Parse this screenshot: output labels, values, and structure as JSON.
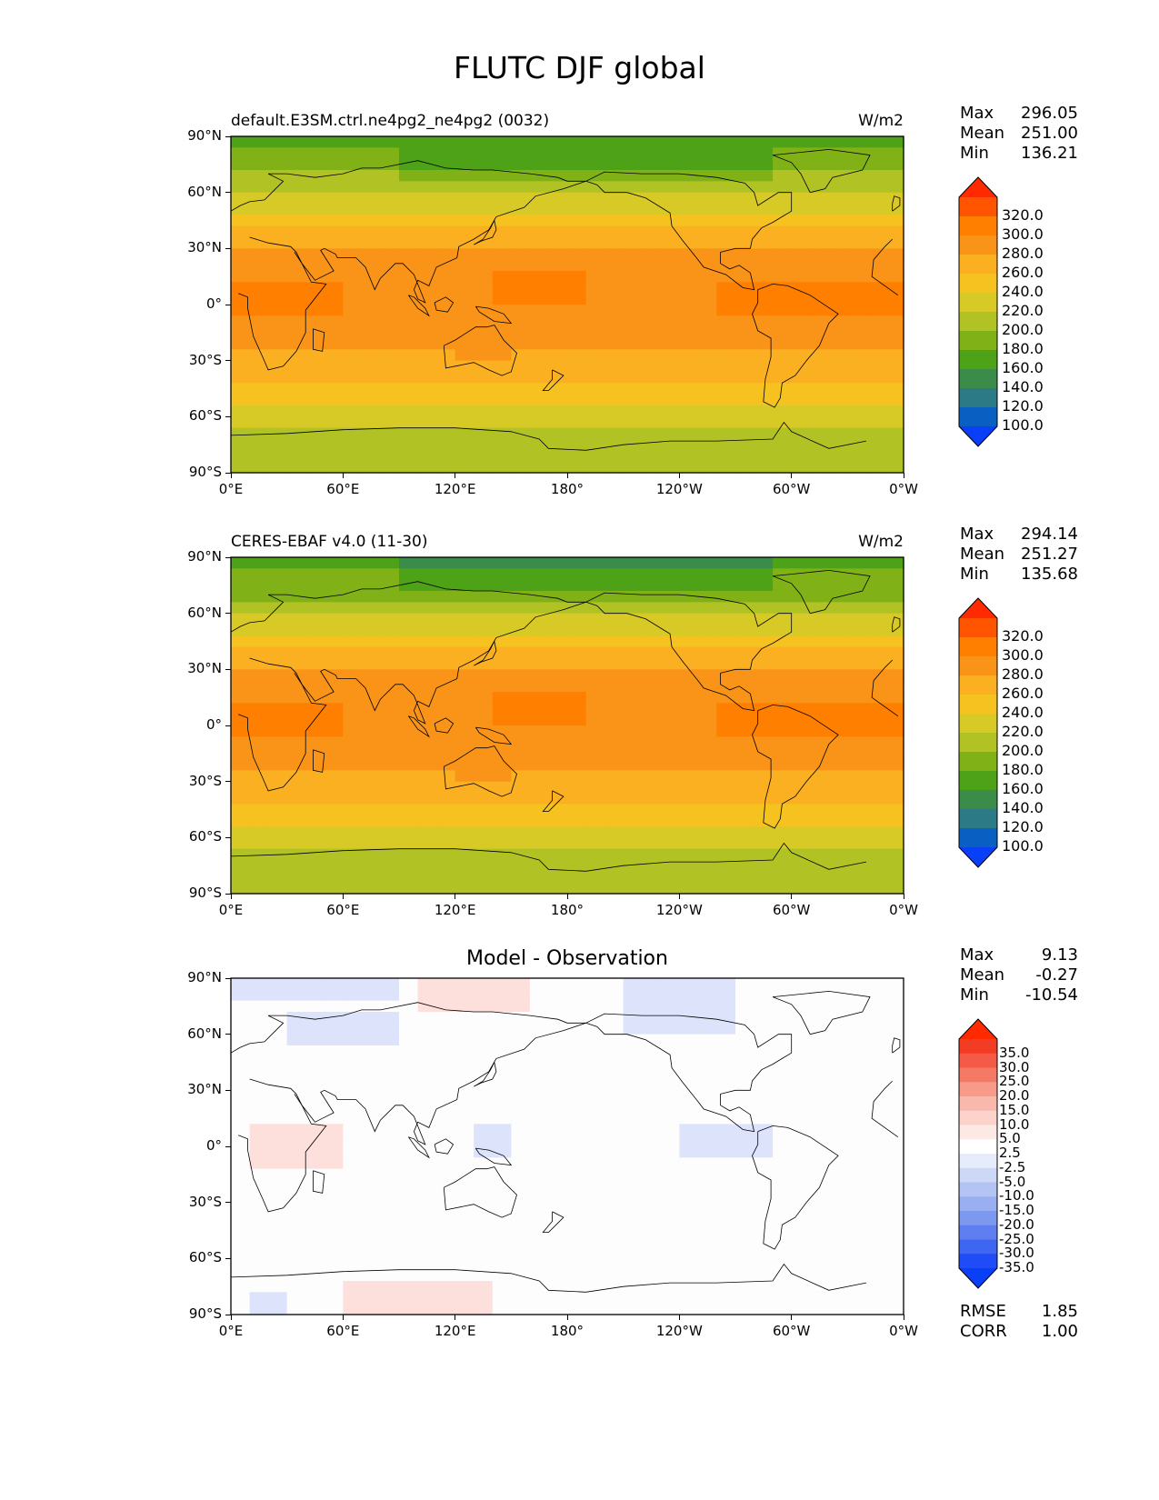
{
  "title": "FLUTC DJF global",
  "lon_ticks": [
    "0°E",
    "60°E",
    "120°E",
    "180°",
    "120°W",
    "60°W",
    "0°W"
  ],
  "lat_ticks": [
    "90°N",
    "60°N",
    "30°N",
    "0°",
    "30°S",
    "60°S",
    "90°S"
  ],
  "panels": [
    {
      "label_left": "default.E3SM.ctrl.ne4pg2_ne4pg2 (0032)",
      "units": "W/m2",
      "center_title": "",
      "stats": [
        {
          "key": "Max",
          "value": "296.05"
        },
        {
          "key": "Mean",
          "value": "251.00"
        },
        {
          "key": "Min",
          "value": "136.21"
        }
      ],
      "colorbar": {
        "labels": [
          "320.0",
          "300.0",
          "280.0",
          "260.0",
          "240.0",
          "220.0",
          "200.0",
          "180.0",
          "160.0",
          "140.0",
          "120.0",
          "100.0"
        ],
        "colors": [
          "#ff2a00",
          "#ff5500",
          "#ff7f00",
          "#fa9418",
          "#fbb022",
          "#f5c220",
          "#d7c926",
          "#b1c225",
          "#80b218",
          "#4ea218",
          "#3b8c4a",
          "#2b7a85",
          "#0a5fc2",
          "#0a3ff8"
        ]
      },
      "chart_data": {
        "type": "heatmap",
        "variable": "FLUTC",
        "season": "DJF",
        "units": "W/m2",
        "stats": {
          "max": 296.05,
          "mean": 251.0,
          "min": 136.21
        },
        "zonal_profile": {
          "lat": [
            90,
            80,
            70,
            60,
            50,
            40,
            30,
            20,
            10,
            0,
            -10,
            -20,
            -30,
            -40,
            -50,
            -60,
            -70,
            -80,
            -90
          ],
          "value": [
            155,
            165,
            180,
            195,
            215,
            240,
            262,
            272,
            275,
            273,
            268,
            265,
            255,
            245,
            225,
            212,
            198,
            185,
            180
          ]
        }
      }
    },
    {
      "label_left": "CERES-EBAF v4.0 (11-30)",
      "units": "W/m2",
      "center_title": "",
      "stats": [
        {
          "key": "Max",
          "value": "294.14"
        },
        {
          "key": "Mean",
          "value": "251.27"
        },
        {
          "key": "Min",
          "value": "135.68"
        }
      ],
      "colorbar": {
        "labels": [
          "320.0",
          "300.0",
          "280.0",
          "260.0",
          "240.0",
          "220.0",
          "200.0",
          "180.0",
          "160.0",
          "140.0",
          "120.0",
          "100.0"
        ],
        "colors": [
          "#ff2a00",
          "#ff5500",
          "#ff7f00",
          "#fa9418",
          "#fbb022",
          "#f5c220",
          "#d7c926",
          "#b1c225",
          "#80b218",
          "#4ea218",
          "#3b8c4a",
          "#2b7a85",
          "#0a5fc2",
          "#0a3ff8"
        ]
      },
      "chart_data": {
        "type": "heatmap",
        "variable": "FLUTC",
        "season": "DJF",
        "units": "W/m2",
        "stats": {
          "max": 294.14,
          "mean": 251.27,
          "min": 135.68
        },
        "zonal_profile": {
          "lat": [
            90,
            80,
            70,
            60,
            50,
            40,
            30,
            20,
            10,
            0,
            -10,
            -20,
            -30,
            -40,
            -50,
            -60,
            -70,
            -80,
            -90
          ],
          "value": [
            150,
            162,
            178,
            195,
            215,
            240,
            262,
            272,
            275,
            273,
            268,
            265,
            255,
            245,
            225,
            212,
            198,
            185,
            180
          ]
        }
      }
    },
    {
      "label_left": "",
      "units": "",
      "center_title": "Model - Observation",
      "stats": [
        {
          "key": "Max",
          "value": "9.13"
        },
        {
          "key": "Mean",
          "value": "-0.27"
        },
        {
          "key": "Min",
          "value": "-10.54"
        }
      ],
      "extra_stats": [
        {
          "key": "RMSE",
          "value": "1.85"
        },
        {
          "key": "CORR",
          "value": "1.00"
        }
      ],
      "colorbar": {
        "labels": [
          "35.0",
          "30.0",
          "25.0",
          "20.0",
          "15.0",
          "10.0",
          "5.0",
          "2.5",
          "-2.5",
          "-5.0",
          "-10.0",
          "-15.0",
          "-20.0",
          "-25.0",
          "-30.0",
          "-35.0"
        ],
        "colors": [
          "#ff2a00",
          "#f23c24",
          "#f55a46",
          "#f57a66",
          "#f79a8a",
          "#f9b8ac",
          "#fbd3cb",
          "#fde9e4",
          "#ffffff",
          "#e6ecfb",
          "#cdd8f7",
          "#b3c3f4",
          "#99aff1",
          "#7d98ef",
          "#5f7ff0",
          "#3f66f3",
          "#1f4cf6",
          "#0a3ff8"
        ]
      },
      "chart_data": {
        "type": "heatmap",
        "variable": "FLUTC difference",
        "season": "DJF",
        "stats": {
          "max": 9.13,
          "mean": -0.27,
          "min": -10.54,
          "rmse": 1.85,
          "corr": 1.0
        }
      }
    }
  ]
}
